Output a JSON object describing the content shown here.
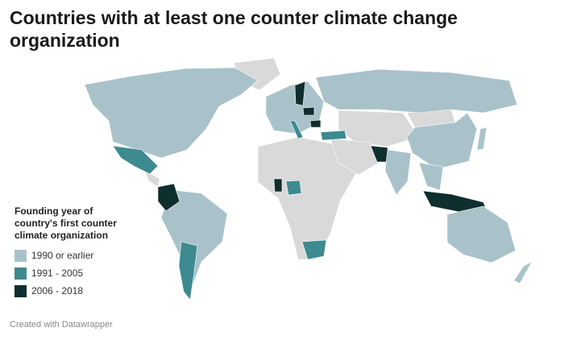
{
  "title": "Countries with at least one counter climate change organization",
  "legend": {
    "title": "Founding year of country's first counter climate organization",
    "items": [
      {
        "label": "1990 or earlier",
        "color": "#a9c2ca"
      },
      {
        "label": "1991 - 2005",
        "color": "#3d8a90"
      },
      {
        "label": "2006 - 2018",
        "color": "#0e2f2e"
      }
    ]
  },
  "credit": "Created with Datawrapper"
}
